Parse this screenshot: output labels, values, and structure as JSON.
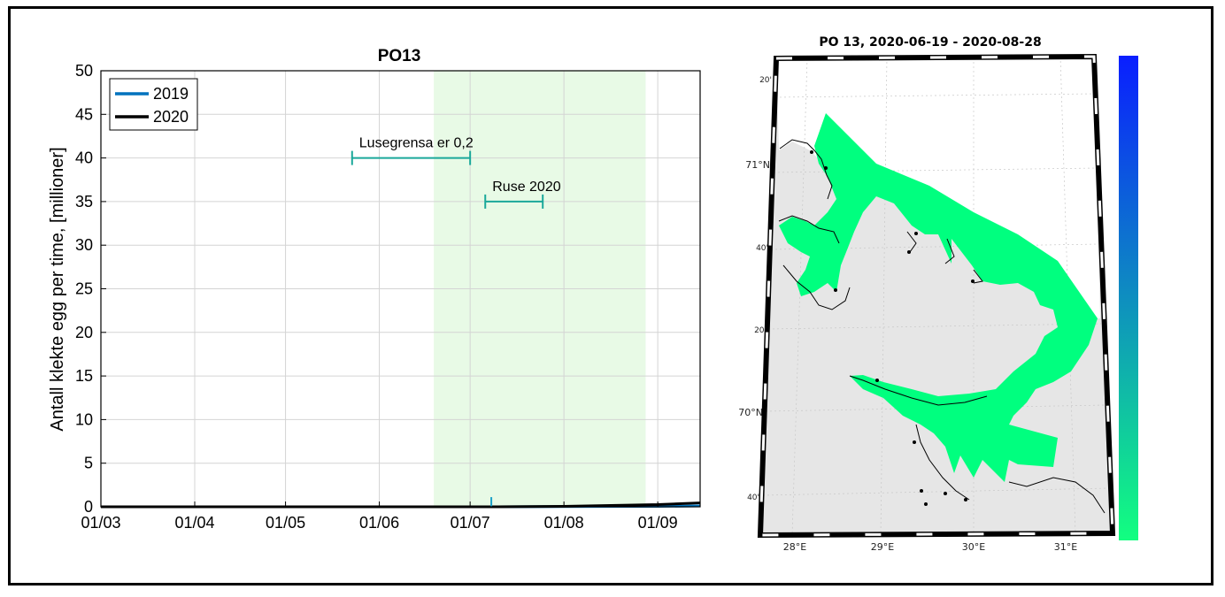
{
  "chart_data": [
    {
      "type": "line",
      "title": "PO13",
      "xlabel": "",
      "ylabel": "Antall klekte egg per time, [millioner]",
      "x_tick_labels": [
        "01/03",
        "01/04",
        "01/05",
        "01/06",
        "01/07",
        "01/08",
        "01/09"
      ],
      "xlim": [
        "2020-03-01",
        "2020-09-15"
      ],
      "ylim": [
        0,
        50
      ],
      "y_ticks": [
        0,
        5,
        10,
        15,
        20,
        25,
        30,
        35,
        40,
        45,
        50
      ],
      "grid": true,
      "legend_placement": "top-left",
      "series": [
        {
          "name": "2019",
          "color": "#0072BD",
          "x": [
            "2020-03-01",
            "2020-06-01",
            "2020-07-10",
            "2020-08-01",
            "2020-09-01",
            "2020-09-15"
          ],
          "y": [
            0,
            0,
            0,
            0.02,
            0.05,
            0.1
          ]
        },
        {
          "name": "2020",
          "color": "#000000",
          "x": [
            "2020-03-01",
            "2020-06-01",
            "2020-07-10",
            "2020-08-01",
            "2020-09-01",
            "2020-09-15"
          ],
          "y": [
            0,
            0,
            0,
            0.05,
            0.25,
            0.45
          ]
        }
      ],
      "shaded_span": {
        "from": "2020-06-19",
        "to": "2020-08-28",
        "color": "#e8fae6"
      },
      "annotations": [
        {
          "label": "Lusegrensa er 0,2",
          "from": "2020-05-23",
          "to": "2020-07-01",
          "y": 40,
          "color": "#1aa89a"
        },
        {
          "label": "Ruse 2020",
          "from": "2020-07-06",
          "to": "2020-07-25",
          "y": 35,
          "color": "#1aa89a"
        }
      ],
      "marker": {
        "x": "2020-07-08",
        "y": 0.5,
        "color": "#1aa0c8"
      }
    },
    {
      "type": "map",
      "title": "PO 13, 2020-06-19 - 2020-08-28",
      "longitude_labels": [
        "28°E",
        "29°E",
        "30°E",
        "31°E"
      ],
      "latitude_labels": [
        "20'",
        "71°N",
        "40'",
        "20'",
        "70°N",
        "40'"
      ],
      "land_color": "#e6e6e6",
      "coverage_color": "#00ff7f",
      "colorbar": {
        "top_color": "#0a1eff",
        "bottom_color": "#12ff80",
        "orientation": "vertical"
      }
    }
  ]
}
